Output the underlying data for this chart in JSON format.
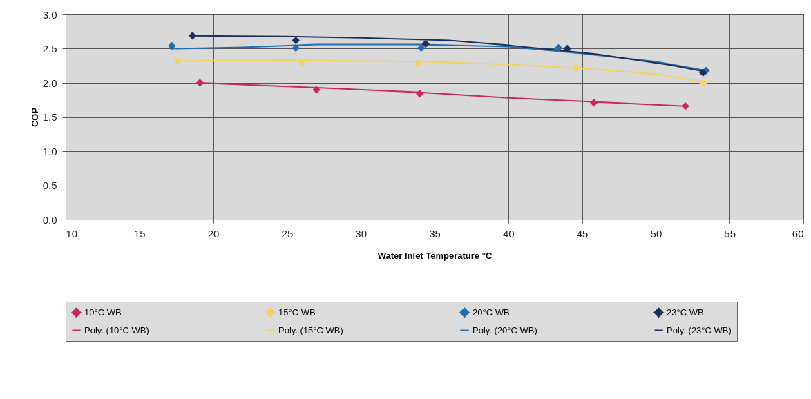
{
  "chart_data": {
    "type": "scatter",
    "xlabel": "Water Inlet Temperature °C",
    "ylabel": "COP",
    "xlim": [
      10,
      60
    ],
    "xticks": [
      10,
      15,
      20,
      25,
      30,
      35,
      40,
      45,
      50,
      55,
      60
    ],
    "ylim": [
      0,
      3
    ],
    "yticks": [
      {
        "value": 0,
        "label": "0.0"
      },
      {
        "value": 0.5,
        "label": "0.5"
      },
      {
        "value": 1,
        "label": "1.0"
      },
      {
        "value": 1.5,
        "label": "1.5"
      },
      {
        "value": 2,
        "label": "2.0"
      },
      {
        "value": 2.5,
        "label": "2.5"
      },
      {
        "value": 3,
        "label": "3.0"
      }
    ],
    "grid": true,
    "legend": "bottom",
    "marker": "diamond",
    "series": [
      {
        "name": "10°C WB",
        "color": "#c8285a",
        "x": [
          19.1,
          27,
          34,
          45.8,
          52
        ],
        "values": [
          2.0,
          1.9,
          1.84,
          1.71,
          1.66
        ]
      },
      {
        "name": "15°C WB",
        "color": "#f2d36a",
        "x": [
          17.6,
          26,
          33.9,
          44.6,
          53.2
        ],
        "values": [
          2.32,
          2.3,
          2.28,
          2.22,
          2.0
        ]
      },
      {
        "name": "20°C WB",
        "color": "#1f6fb0",
        "x": [
          17.2,
          25.6,
          34.1,
          43.4,
          53.4
        ],
        "values": [
          2.54,
          2.51,
          2.51,
          2.51,
          2.18
        ]
      },
      {
        "name": "23°C WB",
        "color": "#1f2d5a",
        "x": [
          18.6,
          25.6,
          34.4,
          44,
          53.2
        ],
        "values": [
          2.69,
          2.62,
          2.57,
          2.5,
          2.15
        ]
      },
      {
        "type": "line",
        "marker": "none",
        "name": "Poly. (10°C WB)",
        "color": "#c8285a",
        "x": [
          19.1,
          27,
          34,
          40,
          46,
          52
        ],
        "values": [
          2.0,
          1.93,
          1.86,
          1.78,
          1.72,
          1.66
        ]
      },
      {
        "type": "line",
        "marker": "none",
        "name": "Poly. (15°C WB)",
        "color": "#f2d36a",
        "x": [
          17.6,
          25,
          34,
          40,
          45,
          50,
          53.2
        ],
        "values": [
          2.32,
          2.33,
          2.31,
          2.27,
          2.21,
          2.13,
          2.01
        ]
      },
      {
        "type": "line",
        "marker": "none",
        "name": "Poly. (20°C WB)",
        "color": "#1f6fb0",
        "x": [
          17.2,
          22,
          27,
          34,
          40,
          45,
          50,
          53.4
        ],
        "values": [
          2.5,
          2.52,
          2.56,
          2.56,
          2.53,
          2.43,
          2.31,
          2.18
        ]
      },
      {
        "type": "line",
        "marker": "none",
        "name": "Poly. (23°C WB)",
        "color": "#1f2d5a",
        "x": [
          18.6,
          25,
          30,
          36,
          40,
          46,
          51,
          53.2
        ],
        "values": [
          2.69,
          2.68,
          2.66,
          2.62,
          2.55,
          2.42,
          2.26,
          2.17
        ]
      }
    ]
  }
}
